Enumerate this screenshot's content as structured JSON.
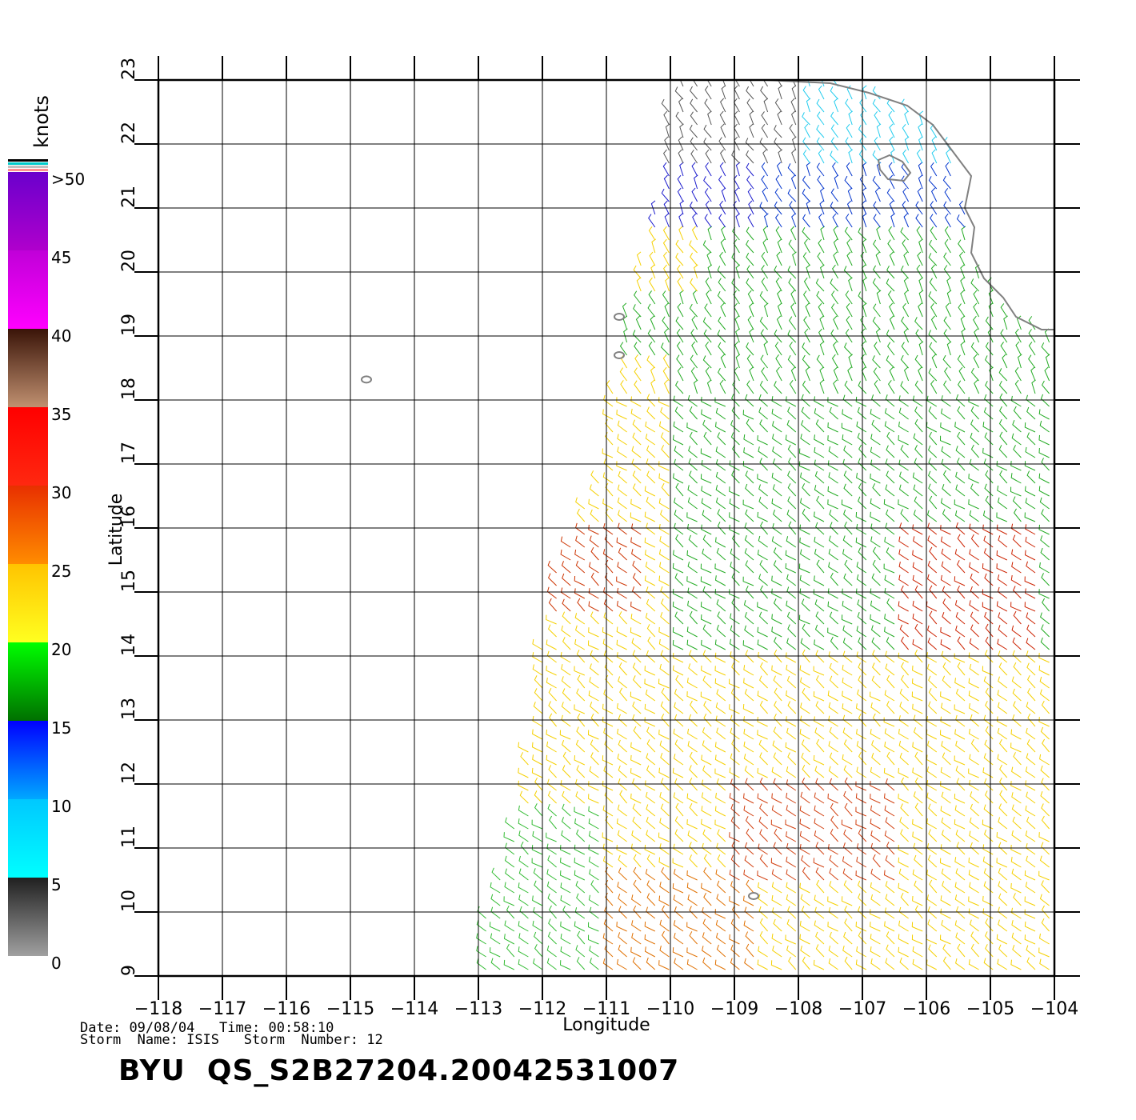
{
  "map": {
    "x_axis_label": "Longitude",
    "y_axis_label": "Latitude",
    "lon_ticks": [
      "-118",
      "-117",
      "-116",
      "-115",
      "-114",
      "-113",
      "-112",
      "-111",
      "-110",
      "-109",
      "-108",
      "-107",
      "-106",
      "-105",
      "-104"
    ],
    "lat_ticks": [
      "9",
      "10",
      "11",
      "12",
      "13",
      "14",
      "15",
      "16",
      "17",
      "18",
      "19",
      "20",
      "21",
      "22",
      "23"
    ],
    "lon_range": [
      -118,
      -104
    ],
    "lat_range": [
      9,
      23
    ],
    "colors": {
      "grid": "#000000",
      "coast": "#808080"
    },
    "islands": [
      {
        "lon": -114.75,
        "lat": 18.32
      },
      {
        "lon": -110.8,
        "lat": 18.7
      },
      {
        "lon": -110.8,
        "lat": 19.3
      },
      {
        "lon": -108.7,
        "lat": 10.25
      }
    ],
    "coastline": [
      [
        -110,
        23
      ],
      [
        -108.5,
        23.0
      ],
      [
        -107.5,
        22.95
      ],
      [
        -106.9,
        22.8
      ],
      [
        -106.3,
        22.6
      ],
      [
        -105.9,
        22.3
      ],
      [
        -105.6,
        21.9
      ],
      [
        -105.3,
        21.5
      ],
      [
        -105.4,
        21.0
      ],
      [
        -105.25,
        20.7
      ],
      [
        -105.3,
        20.3
      ],
      [
        -105.1,
        19.9
      ],
      [
        -104.8,
        19.6
      ],
      [
        -104.6,
        19.3
      ],
      [
        -104.2,
        19.1
      ],
      [
        -104.0,
        19.1
      ]
    ],
    "wind_region": [
      [
        -110.0,
        23.0
      ],
      [
        -110.1,
        21.5
      ],
      [
        -110.45,
        20.3
      ],
      [
        -110.75,
        19.0
      ],
      [
        -110.95,
        18.0
      ],
      [
        -111.0,
        17.0
      ],
      [
        -111.4,
        16.3
      ],
      [
        -111.9,
        15.0
      ],
      [
        -112.1,
        13.5
      ],
      [
        -112.3,
        12.0
      ],
      [
        -112.7,
        10.5
      ],
      [
        -113.0,
        9.6
      ],
      [
        -112.9,
        9.0
      ],
      [
        -104.0,
        9.0
      ],
      [
        -104.0,
        19.0
      ],
      [
        -104.6,
        19.3
      ],
      [
        -105.1,
        19.9
      ],
      [
        -105.3,
        20.3
      ],
      [
        -105.25,
        20.7
      ],
      [
        -105.4,
        21.0
      ],
      [
        -105.6,
        21.9
      ],
      [
        -106.3,
        22.6
      ],
      [
        -107.5,
        22.95
      ],
      [
        -108.5,
        23.0
      ],
      [
        -110.0,
        23.0
      ]
    ]
  },
  "legend": {
    "unit": "knots",
    "labels": [
      ">50",
      "45",
      "40",
      "35",
      "30",
      "25",
      "20",
      "15",
      "10",
      "5",
      "0"
    ],
    "bands": [
      {
        "top": "#6a00cc",
        "bottom": "#b000cc"
      },
      {
        "top": "#c000d8",
        "bottom": "#ff00ff"
      },
      {
        "top": "#3a1408",
        "bottom": "#c09070"
      },
      {
        "top": "#ff0000",
        "bottom": "#ff2810"
      },
      {
        "top": "#e83000",
        "bottom": "#ff8c00"
      },
      {
        "top": "#ffc400",
        "bottom": "#ffff20"
      },
      {
        "top": "#00ff00",
        "bottom": "#007000"
      },
      {
        "top": "#0000ff",
        "bottom": "#00a8ff"
      },
      {
        "top": "#00c8ff",
        "bottom": "#00ffff"
      },
      {
        "top": "#202020",
        "bottom": "#a0a0a0"
      }
    ],
    "cap_colors": [
      "#000000",
      "#00cccc",
      "#c0c0c0",
      "#ff9090"
    ]
  },
  "footer": {
    "date_label": "Date:",
    "date": "09/08/04",
    "time_label": "Time:",
    "time": "00:58:10",
    "storm_name_label": "Storm  Name:",
    "storm_name": "ISIS",
    "storm_number_label": "Storm  Number:",
    "storm_number": "12",
    "file_id": "BYU  QS_S2B27204.20042531007"
  }
}
